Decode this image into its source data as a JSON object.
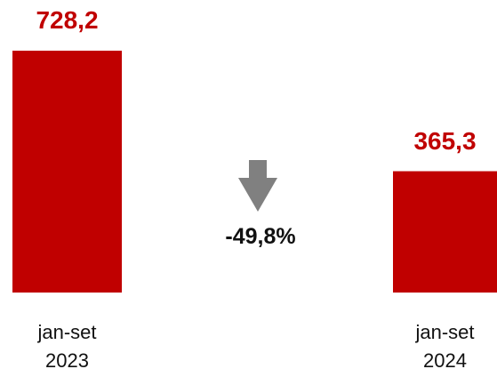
{
  "chart_data": {
    "type": "bar",
    "categories": [
      "jan-set 2023",
      "jan-set 2024"
    ],
    "values": [
      728.2,
      365.3
    ],
    "value_labels": [
      "728,2",
      "365,3"
    ],
    "color": "#c00000",
    "annotation": "-49,8%"
  }
}
